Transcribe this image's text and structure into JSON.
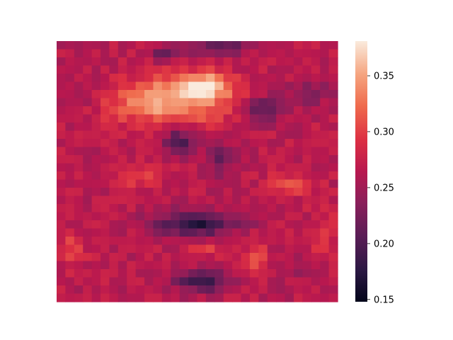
{
  "chart_data": {
    "type": "heatmap",
    "title": "",
    "xlabel": "",
    "ylabel": "",
    "x_ticks_visible": false,
    "y_ticks_visible": false,
    "colormap": "rocket",
    "colorbar": {
      "range": [
        0.148,
        0.381
      ],
      "ticks": [
        0.15,
        0.2,
        0.25,
        0.3,
        0.35
      ],
      "tick_labels": [
        "0.15",
        "0.20",
        "0.25",
        "0.30",
        "0.35"
      ]
    },
    "grid_size": [
      32,
      32
    ],
    "description_regions": [
      {
        "cx": 0.4,
        "cy": 0.23,
        "rx": 0.22,
        "ry": 0.09,
        "value": 0.355
      },
      {
        "cx": 0.53,
        "cy": 0.17,
        "rx": 0.1,
        "ry": 0.05,
        "value": 0.34
      },
      {
        "cx": 0.5,
        "cy": 0.7,
        "rx": 0.14,
        "ry": 0.045,
        "value": 0.17
      },
      {
        "cx": 0.52,
        "cy": 0.92,
        "rx": 0.09,
        "ry": 0.04,
        "value": 0.18
      },
      {
        "cx": 0.44,
        "cy": 0.38,
        "rx": 0.06,
        "ry": 0.05,
        "value": 0.2
      },
      {
        "cx": 0.58,
        "cy": 0.45,
        "rx": 0.05,
        "ry": 0.06,
        "value": 0.21
      },
      {
        "cx": 0.73,
        "cy": 0.26,
        "rx": 0.07,
        "ry": 0.05,
        "value": 0.205
      },
      {
        "cx": 0.39,
        "cy": 0.05,
        "rx": 0.06,
        "ry": 0.03,
        "value": 0.22
      },
      {
        "cx": 0.58,
        "cy": 0.02,
        "rx": 0.1,
        "ry": 0.03,
        "value": 0.2
      },
      {
        "cx": 0.71,
        "cy": 0.83,
        "rx": 0.04,
        "ry": 0.06,
        "value": 0.31
      },
      {
        "cx": 0.53,
        "cy": 0.8,
        "rx": 0.06,
        "ry": 0.03,
        "value": 0.3
      },
      {
        "cx": 0.3,
        "cy": 0.52,
        "rx": 0.08,
        "ry": 0.04,
        "value": 0.3
      },
      {
        "cx": 0.83,
        "cy": 0.55,
        "rx": 0.08,
        "ry": 0.05,
        "value": 0.3
      },
      {
        "cx": 0.05,
        "cy": 0.8,
        "rx": 0.05,
        "ry": 0.07,
        "value": 0.3
      },
      {
        "cx": 0.95,
        "cy": 0.75,
        "rx": 0.05,
        "ry": 0.12,
        "value": 0.29
      },
      {
        "cx": 0.1,
        "cy": 0.2,
        "rx": 0.08,
        "ry": 0.06,
        "value": 0.24
      },
      {
        "cx": 0.9,
        "cy": 0.2,
        "rx": 0.07,
        "ry": 0.05,
        "value": 0.23
      },
      {
        "cx": 0.88,
        "cy": 0.88,
        "rx": 0.08,
        "ry": 0.06,
        "value": 0.25
      }
    ],
    "background_value": 0.265
  }
}
